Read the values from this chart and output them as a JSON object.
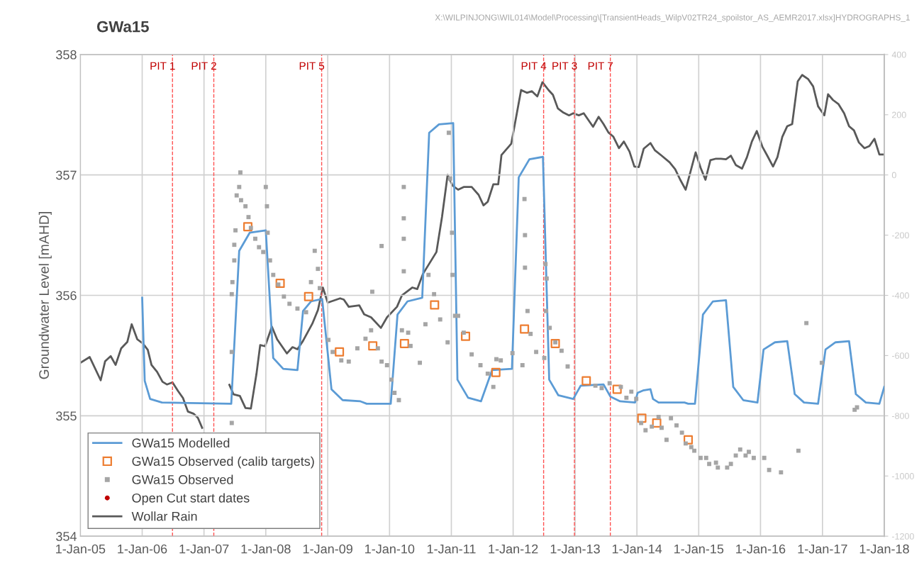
{
  "chart_data": {
    "type": "line",
    "title": "GWa15",
    "ylabel": "Groundwater Level [mAHD]",
    "annotations": [
      "X:\\WILPINJONG\\WIL014\\Model\\Processing\\[TransientHeads_WilpV02TR24_spoilstor_AS_AEMR2017.xlsx]HYDROGRAPHS_1"
    ],
    "xlim": [
      "2005-01-01",
      "2018-01-01"
    ],
    "xticks": [
      {
        "value": "2005-01-01",
        "label": "1-Jan-05"
      },
      {
        "value": "2006-01-01",
        "label": "1-Jan-06"
      },
      {
        "value": "2007-01-01",
        "label": "1-Jan-07"
      },
      {
        "value": "2008-01-01",
        "label": "1-Jan-08"
      },
      {
        "value": "2009-01-01",
        "label": "1-Jan-09"
      },
      {
        "value": "2010-01-01",
        "label": "1-Jan-10"
      },
      {
        "value": "2011-01-01",
        "label": "1-Jan-11"
      },
      {
        "value": "2012-01-01",
        "label": "1-Jan-12"
      },
      {
        "value": "2013-01-01",
        "label": "1-Jan-13"
      },
      {
        "value": "2014-01-01",
        "label": "1-Jan-14"
      },
      {
        "value": "2015-01-01",
        "label": "1-Jan-15"
      },
      {
        "value": "2016-01-01",
        "label": "1-Jan-16"
      },
      {
        "value": "2017-01-01",
        "label": "1-Jan-17"
      },
      {
        "value": "2018-01-01",
        "label": "1-Jan-18"
      }
    ],
    "ylim": [
      354,
      358
    ],
    "yticks": [
      354,
      355,
      356,
      357,
      358
    ],
    "y2lim": [
      -1200,
      400
    ],
    "y2ticks": [
      -1200,
      -1000,
      -800,
      -600,
      -400,
      -200,
      0,
      200,
      400
    ],
    "grid": true,
    "legend": "bottom left",
    "ref_lines": [
      {
        "axis": "x",
        "value": "2006-06-29",
        "label": "PIT 1",
        "color": "#ff5050",
        "line_style": "dashed"
      },
      {
        "axis": "x",
        "value": "2007-02-28",
        "label": "PIT 2",
        "color": "#ff5050",
        "line_style": "dashed"
      },
      {
        "axis": "x",
        "value": "2008-11-26",
        "label": "PIT 5",
        "color": "#ff5050",
        "line_style": "dashed"
      },
      {
        "axis": "x",
        "value": "2012-06-29",
        "label": "PIT 4",
        "color": "#ff5050",
        "line_style": "dashed"
      },
      {
        "axis": "x",
        "value": "2012-12-28",
        "label": "PIT 3",
        "color": "#ff5050",
        "line_style": "dashed"
      },
      {
        "axis": "x",
        "value": "2013-07-28",
        "label": "PIT 7",
        "color": "#ff5050",
        "line_style": "dashed"
      }
    ],
    "series": [
      {
        "name": "GWa15 Modelled",
        "type": "line",
        "color": "#5b9bd5",
        "marker": "none",
        "line_style": "solid",
        "x": [
          "2006-01-01",
          "2006-01-16",
          "2006-02-17",
          "2006-04-28",
          "2007-06-11",
          "2007-07-28",
          "2007-09-28",
          "2008-01-01",
          "2008-02-14",
          "2008-04-13",
          "2008-07-06",
          "2008-08-08",
          "2008-09-24",
          "2008-11-29",
          "2009-01-23",
          "2009-03-30",
          "2009-07-13",
          "2009-08-19",
          "2010-01-08",
          "2010-02-17",
          "2010-04-17",
          "2010-07-13",
          "2010-08-23",
          "2010-10-20",
          "2011-01-12",
          "2011-02-06",
          "2011-04-10",
          "2011-06-25",
          "2011-08-30",
          "2011-12-25",
          "2012-02-03",
          "2012-04-06",
          "2012-06-25",
          "2012-08-01",
          "2012-09-24",
          "2012-12-21",
          "2013-02-03",
          "2013-06-18",
          "2013-07-28",
          "2013-09-24",
          "2013-12-21",
          "2014-01-05",
          "2014-02-06",
          "2014-03-22",
          "2014-04-06",
          "2014-05-09",
          "2014-06-11",
          "2014-10-09",
          "2014-10-31",
          "2014-12-10",
          "2015-01-26",
          "2015-03-26",
          "2015-06-11",
          "2015-07-24",
          "2015-09-21",
          "2015-12-14",
          "2016-01-19",
          "2016-03-26",
          "2016-06-07",
          "2016-07-21",
          "2016-09-14",
          "2016-12-06",
          "2017-01-19",
          "2017-03-19",
          "2017-06-07",
          "2017-07-17",
          "2017-09-14",
          "2017-12-03",
          "2018-01-01"
        ],
        "values": [
          355.98,
          355.29,
          355.14,
          355.11,
          355.1,
          356.37,
          356.52,
          356.54,
          355.48,
          355.39,
          355.38,
          355.87,
          355.95,
          355.97,
          355.22,
          355.13,
          355.12,
          355.1,
          355.1,
          355.84,
          355.95,
          355.98,
          357.35,
          357.42,
          357.43,
          355.3,
          355.15,
          355.12,
          355.38,
          355.39,
          356.98,
          357.13,
          357.15,
          355.3,
          355.17,
          355.14,
          355.25,
          355.26,
          355.16,
          355.12,
          355.11,
          355.19,
          355.21,
          355.22,
          355.14,
          355.11,
          355.11,
          355.11,
          355.1,
          355.1,
          355.84,
          355.95,
          355.96,
          355.24,
          355.13,
          355.11,
          355.55,
          355.61,
          355.62,
          355.18,
          355.11,
          355.1,
          355.55,
          355.61,
          355.62,
          355.18,
          355.11,
          355.1,
          355.24
        ]
      },
      {
        "name": "GWa15 Observed (calib targets)",
        "type": "scatter",
        "color": "#ed7d31",
        "marker": "square",
        "x": [
          "2007-09-17",
          "2008-03-26",
          "2008-09-10",
          "2009-03-11",
          "2009-09-24",
          "2010-03-30",
          "2010-09-24",
          "2011-03-26",
          "2011-09-21",
          "2012-03-08",
          "2012-09-06",
          "2013-03-08",
          "2013-09-06",
          "2014-01-30",
          "2014-04-28",
          "2014-10-31"
        ],
        "values": [
          356.57,
          356.1,
          355.99,
          355.53,
          355.58,
          355.6,
          355.92,
          355.66,
          355.36,
          355.72,
          355.6,
          355.29,
          355.22,
          354.98,
          354.94,
          354.8
        ]
      },
      {
        "name": "GWa15 Observed",
        "type": "scatter",
        "color": "#a5a5a5",
        "marker": "square",
        "x": [
          "2007-06-14",
          "2007-06-14",
          "2007-06-14",
          "2007-06-18",
          "2007-06-29",
          "2007-06-29",
          "2007-07-06",
          "2007-07-13",
          "2007-07-28",
          "2007-08-04",
          "2007-08-08",
          "2007-09-03",
          "2007-09-21",
          "2007-10-05",
          "2007-10-31",
          "2007-11-22",
          "2007-12-17",
          "2008-01-01",
          "2008-01-08",
          "2008-01-12",
          "2008-01-26",
          "2008-02-14",
          "2008-03-15",
          "2008-04-17",
          "2008-05-20",
          "2008-07-06",
          "2008-08-26",
          "2008-09-24",
          "2008-10-16",
          "2008-11-04",
          "2008-11-15",
          "2009-01-05",
          "2009-01-30",
          "2009-03-22",
          "2009-05-05",
          "2009-06-25",
          "2009-08-12",
          "2009-09-14",
          "2009-09-21",
          "2009-11-15",
          "2009-10-24",
          "2009-11-15",
          "2009-12-17",
          "2010-01-12",
          "2010-01-30",
          "2010-02-25",
          "2010-03-26",
          "2010-03-26",
          "2010-03-26",
          "2010-03-26",
          "2010-03-15",
          "2010-04-21",
          "2010-05-05",
          "2010-06-29",
          "2010-08-01",
          "2010-08-19",
          "2010-09-21",
          "2010-10-27",
          "2010-12-10",
          "2010-12-17",
          "2010-12-25",
          "2011-01-05",
          "2011-01-08",
          "2011-01-23",
          "2011-02-10",
          "2011-03-15",
          "2011-05-01",
          "2011-06-22",
          "2011-08-04",
          "2011-09-06",
          "2011-09-24",
          "2011-10-20",
          "2011-12-28",
          "2012-02-25",
          "2012-03-08",
          "2012-03-11",
          "2012-03-11",
          "2012-03-26",
          "2012-04-13",
          "2012-05-16",
          "2012-07-03",
          "2012-07-13",
          "2012-08-04",
          "2012-09-06",
          "2012-10-13",
          "2012-07-10",
          "2012-07-17",
          "2012-11-18",
          "2013-05-01",
          "2013-06-07",
          "2013-07-24",
          "2013-09-28",
          "2013-10-31",
          "2013-11-29",
          "2013-12-28",
          "2014-01-26",
          "2014-02-21",
          "2014-03-30",
          "2014-05-09",
          "2014-05-27",
          "2014-06-25",
          "2014-07-21",
          "2014-08-23",
          "2014-09-24",
          "2014-10-16",
          "2014-11-18",
          "2014-12-06",
          "2015-01-12",
          "2015-02-14",
          "2015-03-04",
          "2015-04-13",
          "2015-04-24",
          "2015-06-18",
          "2015-07-10",
          "2015-08-08",
          "2015-09-03",
          "2015-10-05",
          "2015-10-24",
          "2015-11-22",
          "2016-01-23",
          "2016-02-21",
          "2016-05-01",
          "2016-08-12",
          "2016-09-28",
          "2016-12-28",
          "2017-07-10",
          "2017-07-24"
        ],
        "values": [
          356.01,
          355.53,
          354.94,
          356.11,
          356.29,
          356.42,
          356.54,
          356.83,
          356.9,
          357.02,
          356.79,
          356.74,
          356.65,
          356.56,
          356.47,
          356.4,
          356.36,
          356.9,
          356.74,
          356.52,
          356.29,
          356.17,
          356.09,
          355.99,
          355.93,
          355.89,
          355.86,
          356.11,
          356.37,
          356.22,
          356.06,
          355.63,
          355.53,
          355.46,
          355.45,
          355.56,
          355.64,
          355.71,
          356.03,
          356.41,
          355.56,
          355.45,
          355.42,
          355.3,
          355.19,
          355.13,
          356.9,
          356.64,
          356.47,
          356.2,
          355.71,
          355.69,
          355.58,
          355.44,
          355.76,
          356.17,
          356.01,
          355.8,
          355.61,
          357.35,
          356.97,
          356.52,
          356.17,
          355.83,
          355.83,
          355.69,
          355.51,
          355.42,
          355.35,
          355.24,
          355.47,
          355.46,
          355.52,
          355.42,
          356.8,
          356.5,
          356.23,
          355.87,
          355.68,
          355.53,
          355.48,
          355.87,
          355.73,
          355.61,
          355.54,
          356.26,
          356.14,
          355.41,
          355.25,
          355.23,
          355.27,
          355.24,
          355.15,
          355.2,
          355.14,
          354.94,
          354.88,
          354.91,
          354.99,
          354.9,
          354.8,
          354.98,
          354.92,
          354.86,
          354.77,
          354.74,
          354.71,
          354.65,
          354.65,
          354.6,
          354.61,
          354.57,
          354.57,
          354.6,
          354.67,
          354.72,
          354.67,
          354.7,
          354.65,
          354.65,
          354.55,
          354.53,
          354.71,
          355.77,
          355.44,
          355.05,
          355.07
        ]
      },
      {
        "name": "Open Cut start dates",
        "type": "scatter",
        "color": "#c00000",
        "marker": "circle"
      },
      {
        "name": "Wollar Rain",
        "type": "line",
        "color": "#595959",
        "marker": "none",
        "line_style": "solid",
        "axis": "y2",
        "x": [
          "2005-01-01",
          "2005-02-25",
          "2005-05-01",
          "2005-05-27",
          "2005-06-29",
          "2005-07-28",
          "2005-08-30",
          "2005-10-05",
          "2005-10-31",
          "2005-12-03",
          "2006-01-05",
          "2006-02-03",
          "2006-02-25",
          "2006-03-30",
          "2006-05-01",
          "2006-05-27",
          "2006-06-29",
          "2006-08-01",
          "2006-08-30",
          "2006-09-28",
          "2006-10-31",
          "2006-11-26",
          "2006-12-21",
          "2007-03-15",
          "2007-05-31",
          "2007-06-25",
          "2007-08-01",
          "2007-09-03",
          "2007-10-05",
          "2007-11-07",
          "2007-11-29",
          "2007-12-28",
          "2008-02-06",
          "2008-03-08",
          "2008-05-05",
          "2008-06-07",
          "2008-07-06",
          "2008-08-08",
          "2008-10-02",
          "2008-11-04",
          "2008-12-03",
          "2009-01-01",
          "2009-03-15",
          "2009-04-06",
          "2009-05-05",
          "2009-07-06",
          "2009-08-04",
          "2009-09-14",
          "2009-11-11",
          "2009-12-17",
          "2010-02-14",
          "2010-03-15",
          "2010-05-16",
          "2010-06-14",
          "2010-07-17",
          "2010-10-05",
          "2010-11-07",
          "2010-12-10",
          "2011-01-08",
          "2011-02-10",
          "2011-03-15",
          "2011-05-01",
          "2011-06-11",
          "2011-07-10",
          "2011-08-04",
          "2011-09-06",
          "2011-10-05",
          "2011-10-24",
          "2011-12-21",
          "2012-02-17",
          "2012-03-22",
          "2012-04-21",
          "2012-05-23",
          "2012-06-22",
          "2012-07-28",
          "2012-08-23",
          "2012-09-21",
          "2012-10-24",
          "2012-11-26",
          "2012-12-21",
          "2013-01-23",
          "2013-02-21",
          "2013-04-17",
          "2013-05-20",
          "2013-06-18",
          "2013-07-17",
          "2013-08-15",
          "2013-09-17",
          "2013-10-16",
          "2013-11-18",
          "2013-12-17",
          "2014-01-12",
          "2014-02-10",
          "2014-03-22",
          "2014-04-17",
          "2014-05-27",
          "2014-07-13",
          "2014-08-15",
          "2014-09-14",
          "2014-10-16",
          "2014-12-14",
          "2015-01-12",
          "2015-02-10",
          "2015-03-11",
          "2015-04-13",
          "2015-05-12",
          "2015-06-11",
          "2015-07-10",
          "2015-08-08",
          "2015-09-14",
          "2015-10-13",
          "2015-11-11",
          "2015-12-10",
          "2016-01-12",
          "2016-02-10",
          "2016-03-15",
          "2016-04-10",
          "2016-05-09",
          "2016-06-07",
          "2016-07-06",
          "2016-08-08",
          "2016-09-03",
          "2016-10-09",
          "2016-11-07",
          "2016-12-06",
          "2017-01-12",
          "2017-02-03",
          "2017-03-04",
          "2017-04-06",
          "2017-05-09",
          "2017-06-07",
          "2017-07-06",
          "2017-08-04",
          "2017-09-06",
          "2017-10-05",
          "2017-11-04",
          "2017-12-03",
          "2018-01-01"
        ],
        "values": [
          -624,
          -605,
          -682,
          -619,
          -602,
          -631,
          -576,
          -555,
          -496,
          -546,
          -560,
          -581,
          -631,
          -654,
          -687,
          -696,
          -689,
          -718,
          -741,
          -786,
          -793,
          -807,
          -840,
          null,
          -697,
          -729,
          -734,
          -774,
          -776,
          -661,
          -565,
          -569,
          -504,
          -546,
          -593,
          -572,
          -579,
          -551,
          -494,
          -449,
          -374,
          -424,
          -410,
          -414,
          -438,
          -433,
          -463,
          -473,
          -508,
          -473,
          -438,
          -400,
          -374,
          -379,
          -329,
          -256,
          -139,
          0,
          -35,
          -49,
          -40,
          -40,
          -66,
          -101,
          -89,
          -31,
          -31,
          66,
          104,
          282,
          273,
          278,
          261,
          308,
          282,
          266,
          221,
          207,
          198,
          205,
          198,
          205,
          160,
          193,
          169,
          141,
          127,
          89,
          111,
          78,
          28,
          26,
          87,
          106,
          82,
          64,
          42,
          19,
          -16,
          -49,
          75,
          24,
          -16,
          49,
          54,
          54,
          52,
          64,
          33,
          21,
          59,
          111,
          146,
          94,
          64,
          28,
          59,
          127,
          162,
          169,
          311,
          332,
          318,
          294,
          228,
          198,
          268,
          249,
          235,
          205,
          162,
          148,
          108,
          89,
          96,
          120,
          68,
          68
        ]
      }
    ]
  }
}
